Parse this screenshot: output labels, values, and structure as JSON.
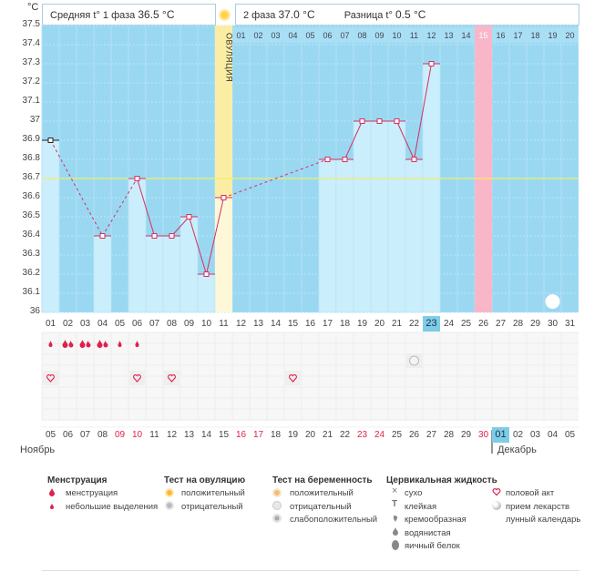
{
  "header": {
    "unit": "°C",
    "phase1_label": "Средняя t° 1 фаза",
    "phase1_value": "36.5 °C",
    "phase2_label": "2 фаза",
    "phase2_value": "37.0 °C",
    "diff_label": "Разница t°",
    "diff_value": "0.5 °C"
  },
  "ovulation_label": "ОВУЛЯЦИЯ",
  "chart_data": {
    "type": "line",
    "title": "",
    "ylabel": "°C",
    "ylim": [
      36,
      37.5
    ],
    "yticks": [
      "37.5",
      "37.4",
      "37.3",
      "37.2",
      "37.1",
      "37",
      "36.9",
      "36.8",
      "36.7",
      "36.6",
      "36.5",
      "36.4",
      "36.3",
      "36.2",
      "36.1",
      "36"
    ],
    "coverline": 36.7,
    "cycle_days": [
      "01",
      "02",
      "03",
      "04",
      "05",
      "06",
      "07",
      "08",
      "09",
      "10",
      "11",
      "12",
      "13",
      "14",
      "15",
      "16",
      "17",
      "18",
      "19",
      "20",
      "21",
      "22",
      "23",
      "24",
      "25",
      "26",
      "27",
      "28",
      "29",
      "30",
      "31"
    ],
    "top_days": [
      "01",
      "02",
      "03",
      "04",
      "05",
      "06",
      "07",
      "08",
      "09",
      "10",
      "11",
      "12",
      "13",
      "14",
      "15",
      "16",
      "17",
      "18",
      "19",
      "20"
    ],
    "top_day_highlight": "15",
    "ovulation_day": 11,
    "highlight_cycle_day": 23,
    "pink_cycle_day": 26,
    "moon_cycle_day": 30,
    "temperatures": [
      {
        "day": 1,
        "temp": 36.9
      },
      {
        "day": 4,
        "temp": 36.4
      },
      {
        "day": 6,
        "temp": 36.7
      },
      {
        "day": 7,
        "temp": 36.4
      },
      {
        "day": 8,
        "temp": 36.4
      },
      {
        "day": 9,
        "temp": 36.5
      },
      {
        "day": 10,
        "temp": 36.2
      },
      {
        "day": 11,
        "temp": 36.6
      },
      {
        "day": 17,
        "temp": 36.8
      },
      {
        "day": 18,
        "temp": 36.8
      },
      {
        "day": 19,
        "temp": 37.0
      },
      {
        "day": 20,
        "temp": 37.0
      },
      {
        "day": 21,
        "temp": 37.0
      },
      {
        "day": 22,
        "temp": 36.8
      },
      {
        "day": 23,
        "temp": 37.3
      }
    ],
    "dashed_segments": [
      [
        1,
        4
      ],
      [
        4,
        6
      ],
      [
        11,
        17
      ]
    ],
    "menstruation": [
      {
        "day": 1,
        "kind": "light"
      },
      {
        "day": 2,
        "kind": "heavy"
      },
      {
        "day": 3,
        "kind": "heavy"
      },
      {
        "day": 4,
        "kind": "heavy"
      },
      {
        "day": 5,
        "kind": "light"
      },
      {
        "day": 6,
        "kind": "light"
      }
    ],
    "intercourse_days": [
      1,
      6,
      8,
      15
    ],
    "pregnancy_test_day": 22,
    "calendar_dates": [
      "05",
      "06",
      "07",
      "08",
      "09",
      "10",
      "11",
      "12",
      "13",
      "14",
      "15",
      "16",
      "17",
      "18",
      "19",
      "20",
      "21",
      "22",
      "23",
      "24",
      "25",
      "26",
      "27",
      "28",
      "29",
      "30",
      "01",
      "02",
      "03",
      "04",
      "05"
    ],
    "calendar_red_dates": [
      5,
      6,
      12,
      13,
      19,
      20,
      26,
      27
    ],
    "calendar_highlight_index": 23,
    "month_november": "Ноябрь",
    "month_december": "Декабрь"
  },
  "legend": {
    "menstruation": {
      "title": "Менструация",
      "items": [
        "менструация",
        "небольшие выделения"
      ]
    },
    "ovulation_test": {
      "title": "Тест на овуляцию",
      "items": [
        "положительный",
        "отрицательный"
      ]
    },
    "pregnancy_test": {
      "title": "Тест на беременность",
      "items": [
        "положительный",
        "отрицательный",
        "слабоположительный"
      ]
    },
    "cervical": {
      "title": "Цервикальная жидкость",
      "items": [
        "сухо",
        "клейкая",
        "кремообразная",
        "водянистая",
        "яичный белок"
      ]
    },
    "other": {
      "items": [
        "половой акт",
        "прием лекарств",
        "лунный календарь"
      ]
    }
  },
  "colors": {
    "background": "#9ad8f2",
    "bar": "#cbeefc",
    "ovulation": "#fbeea4",
    "pink": "#f9b6c8",
    "line": "#d43060",
    "coverline": "#f0f066",
    "highlight": "#7dcde8"
  }
}
